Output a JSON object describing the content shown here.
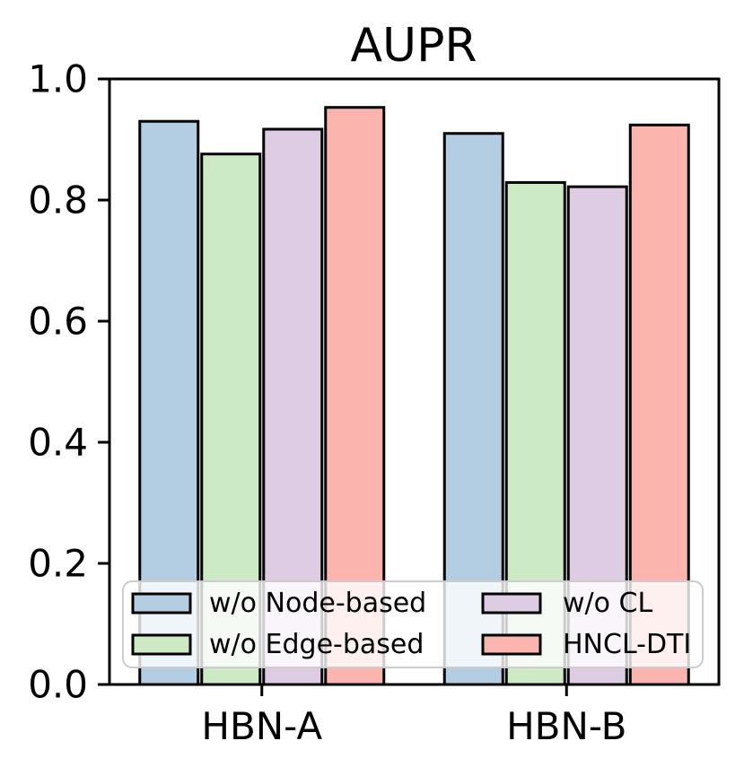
{
  "figure": {
    "background": "#ffffff"
  },
  "chart_data": {
    "type": "bar",
    "title": "AUPR",
    "categories": [
      "HBN-A",
      "HBN-B"
    ],
    "series": [
      {
        "name": "w/o Node-based",
        "color": "#b3cde3",
        "values": [
          0.93,
          0.91
        ]
      },
      {
        "name": "w/o Edge-based",
        "color": "#ccebc5",
        "values": [
          0.876,
          0.829
        ]
      },
      {
        "name": "w/o CL",
        "color": "#decbe4",
        "values": [
          0.917,
          0.822
        ]
      },
      {
        "name": "HNCL-DTI",
        "color": "#fbb4ae",
        "values": [
          0.953,
          0.924
        ]
      }
    ],
    "xlabel": "",
    "ylabel": "",
    "ylim": [
      0.0,
      1.0
    ],
    "yticks": [
      "0.0",
      "0.2",
      "0.4",
      "0.6",
      "0.8",
      "1.0"
    ],
    "grid": false,
    "legend": {
      "position": "lower center inside plot",
      "columns": 2,
      "order": "column-major",
      "fill": "#ffffff",
      "fill_opacity": 0.8,
      "border_color": "#cccccc"
    },
    "bar_edge_color": "#000000",
    "axis_color": "#000000"
  }
}
